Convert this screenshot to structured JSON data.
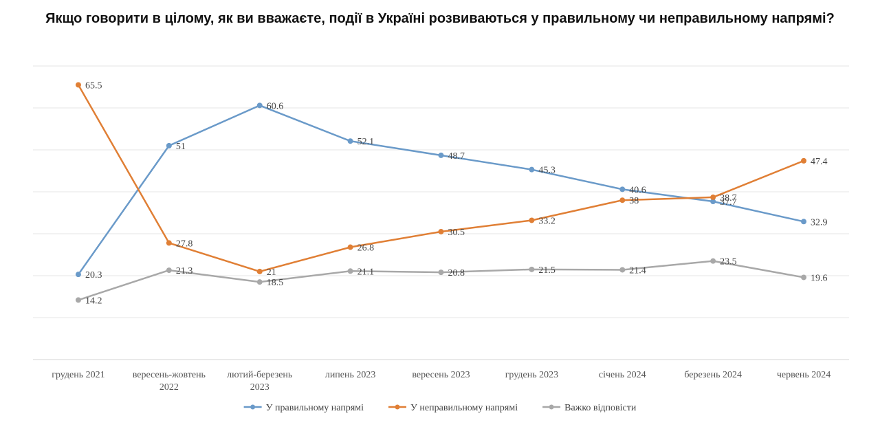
{
  "chart_data": {
    "type": "line",
    "title": "Якщо говорити в цілому, як ви вважаєте, події в Україні розвиваються у правильному чи неправильному напрямі?",
    "xlabel": "",
    "ylabel": "",
    "ylim": [
      0,
      70
    ],
    "grid": true,
    "legend_position": "bottom",
    "categories": [
      [
        "грудень 2021"
      ],
      [
        "вересень-жовтень",
        "2022"
      ],
      [
        "лютий-березень",
        "2023"
      ],
      [
        "липень 2023"
      ],
      [
        "вересень 2023"
      ],
      [
        "грудень 2023"
      ],
      [
        "січень 2024"
      ],
      [
        "березень 2024"
      ],
      [
        "червень 2024"
      ]
    ],
    "series": [
      {
        "name": "У правильному напрямі",
        "color": "#6a9ac9",
        "values": [
          20.3,
          51,
          60.6,
          52.1,
          48.7,
          45.3,
          40.6,
          37.7,
          32.9
        ],
        "labels": [
          "20.3",
          "51",
          "60.6",
          "52.1",
          "48.7",
          "45.3",
          "40.6",
          "37.7",
          "32.9"
        ]
      },
      {
        "name": "У неправильному напрямі",
        "color": "#e07f35",
        "values": [
          65.5,
          27.8,
          21,
          26.8,
          30.5,
          33.2,
          38,
          38.7,
          47.4
        ],
        "labels": [
          "65.5",
          "27.8",
          "21",
          "26.8",
          "30.5",
          "33.2",
          "38",
          "38.7",
          "47.4"
        ]
      },
      {
        "name": "Важко відповісти",
        "color": "#a8a8a8",
        "values": [
          14.2,
          21.3,
          18.5,
          21.1,
          20.8,
          21.5,
          21.4,
          23.5,
          19.6
        ],
        "labels": [
          "14.2",
          "21.3",
          "18.5",
          "21.1",
          "20.8",
          "21.5",
          "21.4",
          "23.5",
          "19.6"
        ]
      }
    ]
  }
}
